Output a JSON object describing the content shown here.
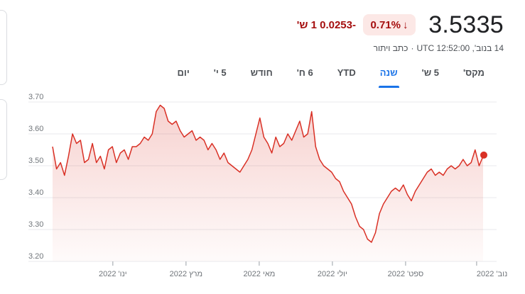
{
  "quote": {
    "price": "3.5335",
    "change_pct": "0.71%",
    "change_arrow": "↓",
    "change_abs": "-0.0253 1 ש'",
    "timestamp": "14 בנוב', UTC 12:52:00",
    "disclaimer": "כתב ויתור",
    "down_color": "#a50e0e",
    "down_bg": "#fce8e6"
  },
  "tabs": [
    {
      "label": "יום",
      "selected": false
    },
    {
      "label": "5 י'",
      "selected": false
    },
    {
      "label": "חודש",
      "selected": false
    },
    {
      "label": "6 ח'",
      "selected": false
    },
    {
      "label": "YTD",
      "selected": false
    },
    {
      "label": "שנה",
      "selected": true
    },
    {
      "label": "5 ש'",
      "selected": false
    },
    {
      "label": "מקס'",
      "selected": false
    }
  ],
  "chart_data": {
    "type": "line",
    "line_color": "#d93025",
    "y_range": [
      3.2,
      3.7
    ],
    "y_ticks": [
      "3.70",
      "3.60",
      "3.50",
      "3.40",
      "3.30",
      "3.20"
    ],
    "x_ticks": [
      {
        "label": "ינו' 2022",
        "at": 0.14
      },
      {
        "label": "מרץ 2022",
        "at": 0.31
      },
      {
        "label": "מאי 2022",
        "at": 0.48
      },
      {
        "label": "יולי 2022",
        "at": 0.65
      },
      {
        "label": "ספט' 2022",
        "at": 0.82
      },
      {
        "label": "נוב' 2022",
        "at": 0.985
      }
    ],
    "grid": true,
    "series": [
      {
        "values": [
          3.56,
          3.49,
          3.51,
          3.47,
          3.53,
          3.6,
          3.57,
          3.58,
          3.51,
          3.52,
          3.57,
          3.51,
          3.53,
          3.49,
          3.55,
          3.56,
          3.51,
          3.54,
          3.55,
          3.52,
          3.56,
          3.56,
          3.57,
          3.59,
          3.58,
          3.6,
          3.67,
          3.69,
          3.68,
          3.64,
          3.63,
          3.64,
          3.61,
          3.59,
          3.6,
          3.61,
          3.58,
          3.59,
          3.58,
          3.55,
          3.57,
          3.55,
          3.52,
          3.54,
          3.51,
          3.5,
          3.49,
          3.48,
          3.5,
          3.52,
          3.55,
          3.6,
          3.65,
          3.59,
          3.57,
          3.54,
          3.59,
          3.56,
          3.57,
          3.6,
          3.58,
          3.61,
          3.64,
          3.59,
          3.6,
          3.67,
          3.56,
          3.52,
          3.5,
          3.49,
          3.48,
          3.46,
          3.45,
          3.42,
          3.4,
          3.38,
          3.34,
          3.31,
          3.3,
          3.27,
          3.26,
          3.29,
          3.35,
          3.38,
          3.4,
          3.42,
          3.43,
          3.42,
          3.44,
          3.41,
          3.39,
          3.42,
          3.44,
          3.46,
          3.48,
          3.49,
          3.47,
          3.48,
          3.47,
          3.49,
          3.5,
          3.49,
          3.5,
          3.52,
          3.5,
          3.51,
          3.55,
          3.5,
          3.53
        ],
        "last_value": 3.5335
      }
    ]
  }
}
